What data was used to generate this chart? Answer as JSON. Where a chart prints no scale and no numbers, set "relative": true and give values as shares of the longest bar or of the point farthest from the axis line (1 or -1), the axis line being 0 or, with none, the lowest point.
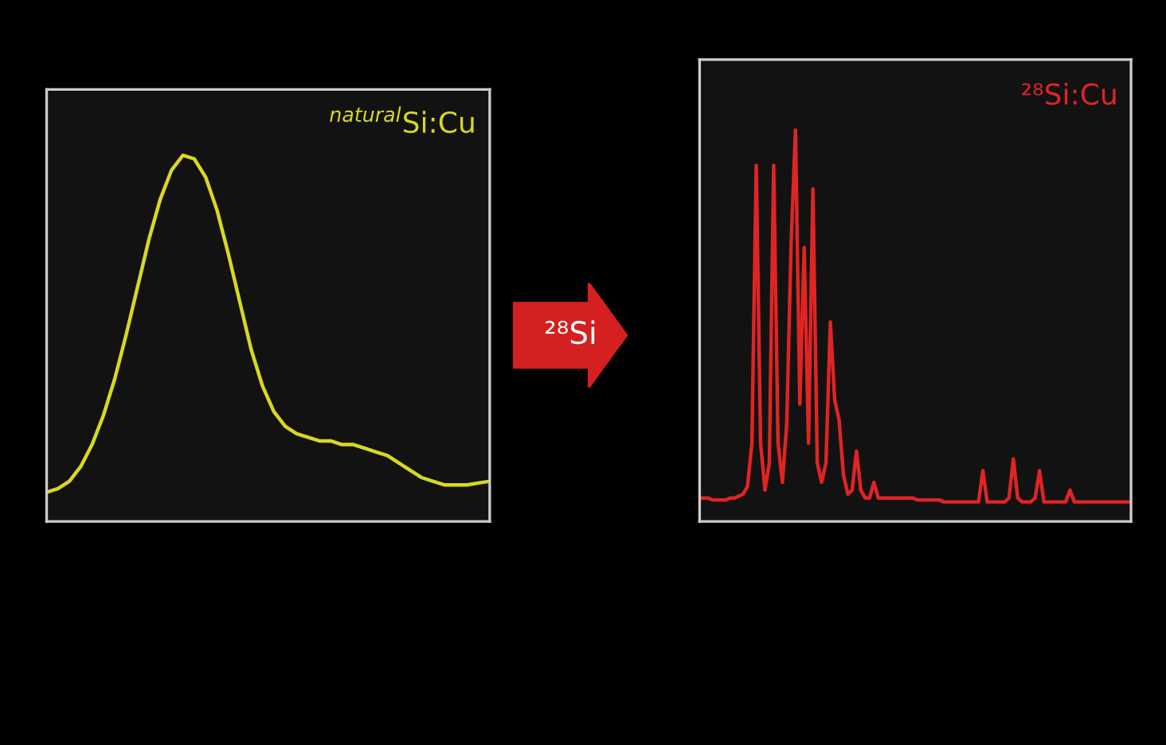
{
  "chart_data": [
    {
      "type": "line",
      "title": "$^{natural}$Si:Cu",
      "relative": true,
      "categories": [
        null,
        null,
        null,
        null,
        null,
        null,
        null,
        null,
        null,
        null,
        null,
        null,
        null,
        null,
        null,
        null,
        null,
        null,
        null,
        null,
        null,
        null,
        null,
        null,
        null,
        null,
        null,
        null,
        null,
        null,
        null,
        null,
        null,
        null,
        null,
        null,
        null,
        null,
        null,
        null
      ],
      "series": [
        {
          "color": "#d8d820",
          "values": [
            0.08,
            0.09,
            0.11,
            0.15,
            0.21,
            0.29,
            0.39,
            0.51,
            0.64,
            0.77,
            0.88,
            0.96,
            1.0,
            0.99,
            0.94,
            0.85,
            0.73,
            0.6,
            0.47,
            0.37,
            0.3,
            0.26,
            0.24,
            0.23,
            0.22,
            0.22,
            0.21,
            0.21,
            0.2,
            0.19,
            0.18,
            0.16,
            0.14,
            0.12,
            0.11,
            0.1,
            0.1,
            0.1,
            0.105,
            0.11
          ]
        }
      ]
    },
    {
      "type": "other",
      "annotations": [
        "²⁸Si"
      ]
    },
    {
      "type": "line",
      "title": "²⁸Si:Cu",
      "relative": true,
      "categories": [
        null,
        null,
        null,
        null,
        null,
        null,
        null,
        null,
        null,
        null,
        null,
        null,
        null,
        null,
        null,
        null,
        null,
        null,
        null,
        null,
        null,
        null,
        null,
        null,
        null,
        null,
        null,
        null,
        null,
        null,
        null,
        null,
        null,
        null,
        null,
        null,
        null,
        null,
        null,
        null,
        null,
        null,
        null,
        null,
        null,
        null,
        null,
        null,
        null,
        null,
        null,
        null,
        null,
        null,
        null,
        null,
        null,
        null,
        null,
        null,
        null,
        null,
        null,
        null,
        null,
        null,
        null,
        null,
        null,
        null,
        null,
        null,
        null,
        null,
        null,
        null,
        null,
        null,
        null,
        null,
        null,
        null,
        null,
        null,
        null,
        null,
        null,
        null,
        null,
        null,
        null,
        null,
        null,
        null,
        null,
        null,
        null,
        null,
        null,
        null
      ],
      "series": [
        {
          "color": "#e02424",
          "values": [
            0.06,
            0.06,
            0.06,
            0.055,
            0.055,
            0.055,
            0.055,
            0.06,
            0.06,
            0.065,
            0.07,
            0.09,
            0.2,
            0.91,
            0.2,
            0.08,
            0.15,
            0.91,
            0.2,
            0.1,
            0.25,
            0.71,
            1.0,
            0.3,
            0.7,
            0.2,
            0.85,
            0.15,
            0.1,
            0.15,
            0.51,
            0.31,
            0.26,
            0.12,
            0.07,
            0.08,
            0.18,
            0.08,
            0.06,
            0.06,
            0.1,
            0.06,
            0.06,
            0.06,
            0.06,
            0.06,
            0.06,
            0.06,
            0.06,
            0.06,
            0.055,
            0.055,
            0.055,
            0.055,
            0.055,
            0.055,
            0.05,
            0.05,
            0.05,
            0.05,
            0.05,
            0.05,
            0.05,
            0.05,
            0.05,
            0.13,
            0.05,
            0.05,
            0.05,
            0.05,
            0.05,
            0.06,
            0.16,
            0.06,
            0.05,
            0.05,
            0.05,
            0.06,
            0.13,
            0.05,
            0.05,
            0.05,
            0.05,
            0.05,
            0.05,
            0.08,
            0.05,
            0.05,
            0.05,
            0.05,
            0.05,
            0.05,
            0.05,
            0.05,
            0.05,
            0.05,
            0.05,
            0.05,
            0.05,
            0.05
          ]
        }
      ]
    }
  ]
}
